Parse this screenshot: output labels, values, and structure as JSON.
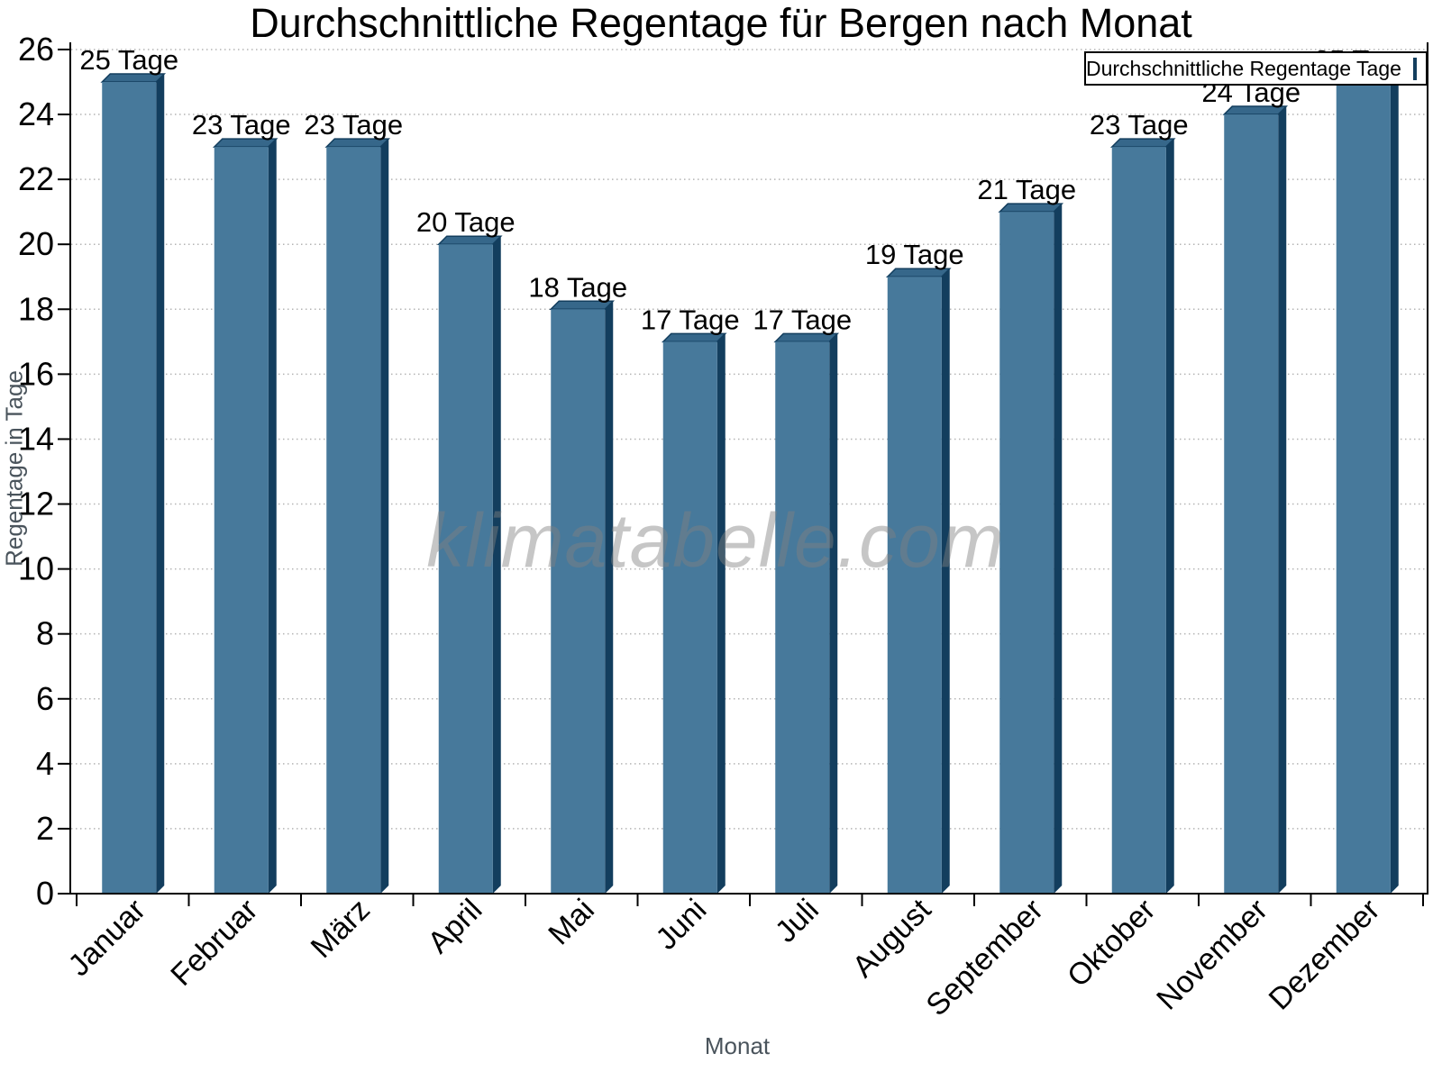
{
  "chart_data": {
    "type": "bar",
    "title": "Durchschnittliche Regentage für Bergen nach Monat",
    "xlabel": "Monat",
    "ylabel": "Regentage in Tage",
    "categories": [
      "Januar",
      "Februar",
      "März",
      "April",
      "Mai",
      "Juni",
      "Juli",
      "August",
      "September",
      "Oktober",
      "November",
      "Dezember"
    ],
    "values": [
      25,
      23,
      23,
      20,
      18,
      17,
      17,
      19,
      21,
      23,
      24,
      25
    ],
    "value_labels": [
      "25 Tage",
      "23 Tage",
      "23 Tage",
      "20 Tage",
      "18 Tage",
      "17 Tage",
      "17 Tage",
      "19 Tage",
      "21 Tage",
      "23 Tage",
      "24 Tage",
      "25 Tage"
    ],
    "ylim": [
      0,
      26
    ],
    "ytick_step": 2,
    "grid": "dotted-horizontal",
    "legend": {
      "label": "Durchschnittliche Regentage Tage",
      "position": "top-right"
    },
    "watermark": "klimatabelle.com",
    "colors": {
      "bar_front": "#47799B",
      "bar_top": "#36678A",
      "bar_side": "#133E5E",
      "grid": "#B4B4B4",
      "axis": "#000000",
      "text": "#000000",
      "axis_title": "#4A545C",
      "watermark": "rgba(128,128,128,0.45)",
      "legend_border": "#000000",
      "background": "#FFFFFF"
    }
  }
}
